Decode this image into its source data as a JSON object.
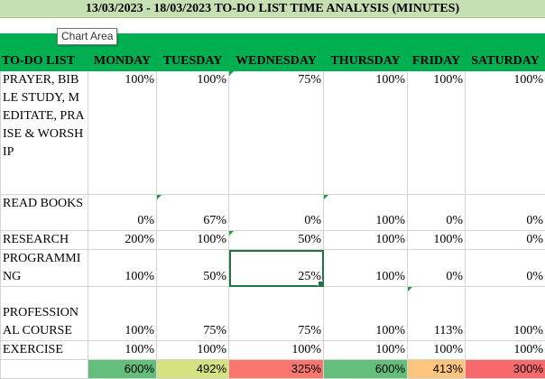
{
  "title": "13/03/2023 - 18/03/2023 TO-DO LIST TIME ANALYSIS (MINUTES)",
  "tooltip": "Chart Area",
  "header": [
    "TO-DO LIST",
    "MONDAY",
    "TUESDAY",
    "WEDNESDAY",
    "THURSDAY",
    "FRIDAY",
    "SATURDAY"
  ],
  "rows": [
    {
      "task": "PRAYER, BIBLE STUDY, MEDITATE, PRAISE & WORSHIP",
      "values": [
        "100%",
        "100%",
        "75%",
        "100%",
        "100%",
        "100%"
      ]
    },
    {
      "task": "READ BOOKS",
      "values": [
        "0%",
        "67%",
        "0%",
        "100%",
        "0%",
        "0%"
      ]
    },
    {
      "task": "RESEARCH",
      "values": [
        "200%",
        "100%",
        "50%",
        "100%",
        "100%",
        "0%"
      ]
    },
    {
      "task": "PROGRAMMING",
      "values": [
        "100%",
        "50%",
        "25%",
        "100%",
        "0%",
        "0%"
      ]
    },
    {
      "task": "PROFESSIONAL COURSE",
      "values": [
        "100%",
        "75%",
        "75%",
        "100%",
        "113%",
        "100%"
      ]
    },
    {
      "task": "EXERCISE",
      "values": [
        "100%",
        "100%",
        "100%",
        "100%",
        "100%",
        "100%"
      ]
    }
  ],
  "totals": [
    "600%",
    "492%",
    "325%",
    "600%",
    "413%",
    "300%"
  ],
  "colors": {
    "title_bg": "#c6e0b4",
    "header_bg": "#00b050",
    "totals": [
      "#63be7b",
      "#d5e17f",
      "#f8766d",
      "#63be7b",
      "#fcc47c",
      "#f8696b"
    ]
  }
}
